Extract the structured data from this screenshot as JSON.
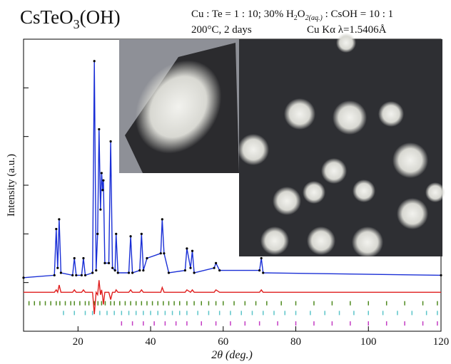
{
  "chart_data": {
    "type": "line",
    "title": {
      "main": "CsTeO",
      "sub": "3",
      "tail": "(OH)"
    },
    "conditions": {
      "a": "Cu : Te = 1 : 10; 30% H",
      "b": "2",
      "c": "O",
      "d": "2(aq.)",
      "e": " : CsOH = 10 : 1"
    },
    "line2": {
      "a": "200°C, 2  days",
      "b": "Cu Kα  λ=1.5406Å"
    },
    "y_label": "Intensity (a.u.)",
    "x_label": "2θ (deg.)",
    "xlim": [
      5,
      120
    ],
    "xticks": [
      20,
      40,
      60,
      80,
      100,
      120
    ],
    "ylim": [
      -20,
      100
    ],
    "yticks": [
      0,
      20,
      40,
      60,
      80
    ],
    "x": [
      5,
      13.5,
      14,
      14.4,
      14.8,
      15.3,
      18.5,
      19,
      19.5,
      21,
      21.5,
      22,
      24,
      24.5,
      25,
      25.4,
      25.8,
      26.2,
      26.5,
      26.8,
      27,
      27.4,
      28.5,
      29,
      29.5,
      30.2,
      30.5,
      31,
      34,
      34.5,
      35,
      37,
      37.5,
      38,
      39,
      42.8,
      43.2,
      43.7,
      45,
      49.5,
      50,
      51,
      51.5,
      52,
      57.5,
      58,
      59,
      70,
      70.5,
      71,
      120
    ],
    "series": [
      {
        "color": "#1a2fd6",
        "values": [
          2,
          3,
          22,
          6,
          26,
          4,
          3,
          10,
          3,
          3,
          10,
          3,
          4,
          91,
          5,
          20,
          63,
          30,
          45,
          38,
          42,
          8,
          8,
          58,
          6,
          5,
          20,
          4,
          4,
          19,
          4,
          5,
          20,
          5,
          10,
          12,
          26,
          12,
          4,
          5,
          14,
          6,
          13,
          4,
          6,
          8,
          5,
          5,
          10,
          4,
          3
        ]
      },
      {
        "color": "#e02020",
        "values": [
          -4,
          -4,
          -3,
          -4,
          -1,
          -4,
          -4,
          -3,
          -4,
          -4,
          -3,
          -4,
          -4,
          -13,
          -4,
          -5,
          1,
          -5,
          -3,
          -6,
          -9,
          -4,
          -4,
          -7,
          -4,
          -4,
          -3,
          -4,
          -4,
          -3,
          -4,
          -4,
          -3,
          -4,
          -4,
          -4,
          -2,
          -4,
          -4,
          -4,
          -3,
          -4,
          -3,
          -4,
          -4,
          -3,
          -4,
          -4,
          -3,
          -4,
          -4
        ]
      }
    ],
    "reflections": [
      {
        "color": "#4e8a1e",
        "y": -8.5,
        "x": [
          6.5,
          8,
          9.5,
          11,
          12.5,
          14,
          15,
          16.5,
          18,
          19,
          20.5,
          22,
          23,
          24.5,
          25.5,
          26.5,
          27.5,
          29,
          30,
          31.5,
          33,
          34.5,
          36,
          37.5,
          39,
          40.5,
          42,
          43.5,
          45,
          46.5,
          48,
          50,
          52,
          54,
          56,
          58,
          60,
          63,
          66,
          69,
          72,
          76,
          80,
          85,
          90,
          95,
          100,
          105,
          110,
          115,
          119
        ]
      },
      {
        "color": "#5bc5c9",
        "y": -12.5,
        "x": [
          16,
          19,
          22,
          24,
          26,
          28,
          30,
          32,
          34,
          36,
          38,
          40,
          42,
          44,
          46,
          48,
          50,
          53,
          56,
          59,
          62,
          65,
          68,
          71,
          74,
          77,
          80,
          84,
          88,
          92,
          96,
          100,
          104,
          108,
          112,
          116,
          119
        ]
      },
      {
        "color": "#c43cc4",
        "y": -16.8,
        "x": [
          32,
          35,
          38,
          41,
          44,
          47,
          50,
          54,
          58,
          62,
          66,
          70,
          75,
          80,
          85,
          90,
          95,
          100,
          105,
          110,
          115,
          119
        ]
      }
    ]
  }
}
